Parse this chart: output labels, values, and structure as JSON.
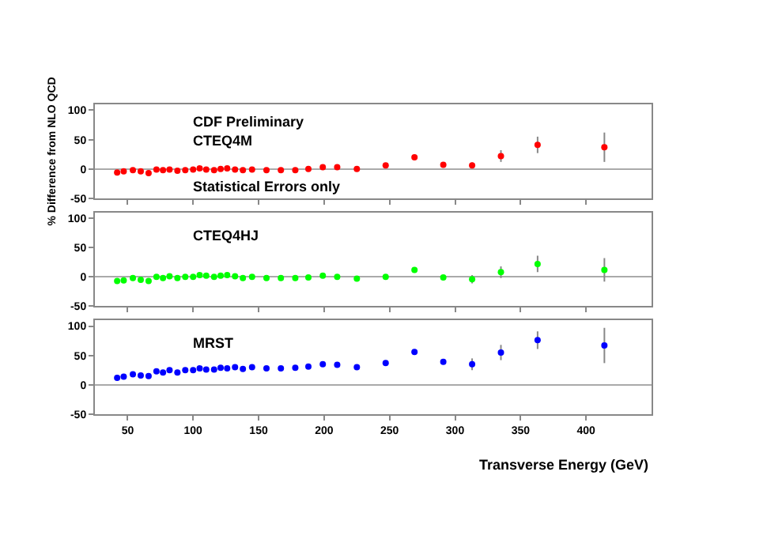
{
  "chart_data": [
    {
      "type": "scatter",
      "ylabel": "% Difference from NLO QCD",
      "annotations": [
        "CDF Preliminary",
        "Statistical Errors only"
      ],
      "xlim": [
        25,
        450
      ],
      "xticks": [
        50,
        100,
        150,
        200,
        250,
        300,
        350,
        400
      ],
      "ylim": [
        -50,
        110
      ],
      "yticks": [
        -50,
        0,
        50,
        100
      ],
      "tick_labels": "y",
      "marker": "circle",
      "x": [
        42,
        47,
        54,
        60,
        66,
        72,
        77,
        82,
        88,
        94,
        100,
        105,
        110,
        116,
        121,
        126,
        132,
        138,
        145,
        156,
        167,
        178,
        188,
        199,
        210,
        225,
        247,
        269,
        291,
        313,
        335,
        363,
        414
      ],
      "series": [
        {
          "name": "CTEQ4M",
          "color": "#ff0000",
          "values": [
            -6,
            -4,
            -2,
            -4,
            -7,
            -1,
            -2,
            -1,
            -3,
            -2,
            -1,
            1,
            -1,
            -2,
            0,
            1,
            -1,
            -2,
            -1,
            -2,
            -2,
            -2,
            0,
            3,
            3,
            0,
            6,
            20,
            7,
            6,
            22,
            41,
            37
          ],
          "errors": [
            null,
            null,
            null,
            null,
            null,
            null,
            null,
            null,
            null,
            null,
            null,
            null,
            null,
            null,
            null,
            null,
            null,
            null,
            null,
            null,
            null,
            null,
            null,
            null,
            null,
            null,
            null,
            null,
            null,
            5,
            10,
            14,
            25
          ]
        }
      ]
    },
    {
      "type": "scatter",
      "xlim": [
        25,
        450
      ],
      "xticks": [
        50,
        100,
        150,
        200,
        250,
        300,
        350,
        400
      ],
      "ylim": [
        -50,
        110
      ],
      "yticks": [
        -50,
        0,
        50,
        100
      ],
      "tick_labels": "y",
      "marker": "circle",
      "x": [
        42,
        47,
        54,
        60,
        66,
        72,
        77,
        82,
        88,
        94,
        100,
        105,
        110,
        116,
        121,
        126,
        132,
        138,
        145,
        156,
        167,
        178,
        188,
        199,
        210,
        225,
        247,
        269,
        291,
        313,
        335,
        363,
        414
      ],
      "series": [
        {
          "name": "CTEQ4HJ",
          "color": "#00ff00",
          "values": [
            -7,
            -6,
            -2,
            -5,
            -7,
            0,
            -2,
            1,
            -2,
            0,
            0,
            3,
            2,
            0,
            2,
            3,
            1,
            -2,
            0,
            -2,
            -2,
            -2,
            -1,
            2,
            0,
            -3,
            0,
            12,
            -1,
            -4,
            8,
            22,
            12
          ],
          "errors": [
            null,
            null,
            null,
            null,
            null,
            null,
            null,
            null,
            null,
            null,
            null,
            null,
            null,
            null,
            null,
            null,
            null,
            null,
            null,
            null,
            null,
            null,
            null,
            null,
            null,
            null,
            null,
            null,
            null,
            7,
            10,
            14,
            20
          ]
        }
      ]
    },
    {
      "type": "scatter",
      "xlabel": "Transverse Energy (GeV)",
      "xlim": [
        25,
        450
      ],
      "xticks": [
        50,
        100,
        150,
        200,
        250,
        300,
        350,
        400
      ],
      "ylim": [
        -50,
        110
      ],
      "yticks": [
        -50,
        0,
        50,
        100
      ],
      "marker": "circle",
      "x": [
        42,
        47,
        54,
        60,
        66,
        72,
        77,
        82,
        88,
        94,
        100,
        105,
        110,
        116,
        121,
        126,
        132,
        138,
        145,
        156,
        167,
        178,
        188,
        199,
        210,
        225,
        247,
        269,
        291,
        313,
        335,
        363,
        414
      ],
      "series": [
        {
          "name": "MRST",
          "color": "#0000ff",
          "values": [
            12,
            14,
            18,
            16,
            15,
            23,
            21,
            25,
            21,
            25,
            25,
            28,
            26,
            26,
            29,
            28,
            30,
            27,
            30,
            28,
            28,
            29,
            31,
            35,
            34,
            30,
            37,
            56,
            39,
            35,
            55,
            76,
            67
          ],
          "errors": [
            null,
            null,
            null,
            null,
            null,
            null,
            null,
            null,
            null,
            null,
            null,
            null,
            null,
            null,
            null,
            null,
            null,
            null,
            null,
            null,
            null,
            null,
            null,
            null,
            null,
            null,
            null,
            null,
            null,
            10,
            13,
            15,
            30
          ]
        }
      ]
    }
  ]
}
